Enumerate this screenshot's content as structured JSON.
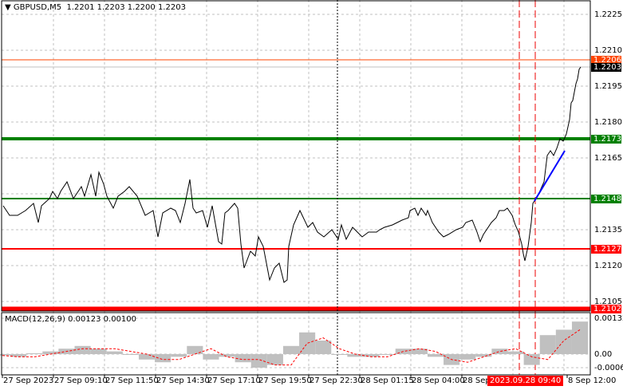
{
  "header": {
    "symbol": "GBPUSD,M5",
    "ohlc": "1.2201 1.2203 1.2200 1.2203",
    "menu_icon": "triangle-down-icon"
  },
  "price_axis": {
    "ticks": [
      "1.2225",
      "1.2210",
      "1.2195",
      "1.2180",
      "1.2165",
      "1.2135",
      "1.2120",
      "1.2105"
    ]
  },
  "levels": [
    {
      "price": 1.2206,
      "label": "1.2206",
      "color": "#ff4500",
      "kind": "ask"
    },
    {
      "price": 1.2203,
      "label": "1.2203",
      "color": "#000000",
      "kind": "bid"
    },
    {
      "price": 1.2173,
      "label": "1.2173",
      "color": "#008000",
      "kind": "resistance"
    },
    {
      "price": 1.2148,
      "label": "1.2148",
      "color": "#008000",
      "kind": "resistance"
    },
    {
      "price": 1.2127,
      "label": "1.2127",
      "color": "#ff0000",
      "kind": "support"
    },
    {
      "price": 1.2102,
      "label": "1.2102",
      "color": "#ff0000",
      "kind": "support"
    }
  ],
  "time_axis": {
    "ticks": [
      "27 Sep 2023",
      "27 Sep 09:10",
      "27 Sep 11:50",
      "27 Sep 14:30",
      "27 Sep 17:10",
      "27 Sep 19:50",
      "27 Sep 22:30",
      "28 Sep 01:15",
      "28 Sep 04:00",
      "28 Sep",
      "8 Sep 12:00"
    ],
    "cursor_time": "2023.09.28 09:40"
  },
  "macd": {
    "label": "MACD(12,26,9) 0.00123 0.00100",
    "ticks": [
      "0.00132",
      "0.00",
      "-0.00063"
    ]
  },
  "chart_data": {
    "type": "line",
    "price_range": [
      1.2096,
      1.2231
    ],
    "price_series": [
      [
        1,
        1.2145
      ],
      [
        5,
        1.2141
      ],
      [
        10,
        1.2141
      ],
      [
        15,
        1.2143
      ],
      [
        20,
        1.2146
      ],
      [
        23,
        1.2138
      ],
      [
        25,
        1.2145
      ],
      [
        30,
        1.2148
      ],
      [
        32,
        1.2151
      ],
      [
        35,
        1.2148
      ],
      [
        37,
        1.2151
      ],
      [
        41,
        1.2155
      ],
      [
        45,
        1.2148
      ],
      [
        50,
        1.2153
      ],
      [
        52,
        1.2149
      ],
      [
        56,
        1.2158
      ],
      [
        59,
        1.2149
      ],
      [
        61,
        1.2159
      ],
      [
        64,
        1.2154
      ],
      [
        66,
        1.2149
      ],
      [
        70,
        1.2144
      ],
      [
        73,
        1.2149
      ],
      [
        77,
        1.2151
      ],
      [
        80,
        1.2153
      ],
      [
        85,
        1.2149
      ],
      [
        90,
        1.2141
      ],
      [
        95,
        1.2143
      ],
      [
        98,
        1.2132
      ],
      [
        101,
        1.2142
      ],
      [
        106,
        1.2144
      ],
      [
        109,
        1.2143
      ],
      [
        112,
        1.2138
      ],
      [
        115,
        1.2146
      ],
      [
        118,
        1.2156
      ],
      [
        120,
        1.2144
      ],
      [
        122,
        1.2142
      ],
      [
        126,
        1.2143
      ],
      [
        129,
        1.2136
      ],
      [
        132,
        1.2145
      ],
      [
        136,
        1.213
      ],
      [
        138,
        1.2129
      ],
      [
        140,
        1.2142
      ],
      [
        142,
        1.2143
      ],
      [
        146,
        1.2146
      ],
      [
        148,
        1.2144
      ],
      [
        150,
        1.2129
      ],
      [
        152,
        1.2119
      ],
      [
        156,
        1.2126
      ],
      [
        159,
        1.2124
      ],
      [
        161,
        1.2132
      ],
      [
        164,
        1.2128
      ],
      [
        166,
        1.2121
      ],
      [
        168,
        1.2114
      ],
      [
        171,
        1.2119
      ],
      [
        174,
        1.2121
      ],
      [
        177,
        1.2113
      ],
      [
        179,
        1.2114
      ],
      [
        180,
        1.2128
      ],
      [
        183,
        1.2137
      ],
      [
        187,
        1.2143
      ],
      [
        192,
        1.2136
      ],
      [
        195,
        1.2138
      ],
      [
        198,
        1.2134
      ],
      [
        202,
        1.2132
      ],
      [
        207,
        1.2135
      ],
      [
        210,
        1.2132
      ],
      [
        211,
        1.2131
      ],
      [
        213,
        1.2137
      ],
      [
        216,
        1.2131
      ],
      [
        220,
        1.2136
      ],
      [
        223,
        1.2134
      ],
      [
        226,
        1.2132
      ],
      [
        230,
        1.2134
      ],
      [
        235,
        1.2134
      ],
      [
        237,
        1.2135
      ],
      [
        240,
        1.2136
      ],
      [
        245,
        1.2137
      ],
      [
        248,
        1.2138
      ],
      [
        251,
        1.2139
      ],
      [
        255,
        1.214
      ],
      [
        256,
        1.2143
      ],
      [
        259,
        1.2144
      ],
      [
        261,
        1.2141
      ],
      [
        263,
        1.2144
      ],
      [
        266,
        1.2141
      ],
      [
        267,
        1.2143
      ],
      [
        270,
        1.2138
      ],
      [
        274,
        1.2134
      ],
      [
        277,
        1.2132
      ],
      [
        280,
        1.2133
      ],
      [
        285,
        1.2135
      ],
      [
        289,
        1.2136
      ],
      [
        291,
        1.2138
      ],
      [
        295,
        1.2139
      ],
      [
        298,
        1.2134
      ],
      [
        300,
        1.213
      ],
      [
        302,
        1.2133
      ],
      [
        307,
        1.2138
      ],
      [
        310,
        1.214
      ],
      [
        312,
        1.2143
      ],
      [
        315,
        1.2143
      ],
      [
        317,
        1.2144
      ],
      [
        320,
        1.2141
      ],
      [
        322,
        1.2137
      ],
      [
        324,
        1.2134
      ],
      [
        326,
        1.2129
      ],
      [
        327,
        1.2125
      ],
      [
        328,
        1.2122
      ],
      [
        330,
        1.2128
      ],
      [
        332,
        1.2138
      ],
      [
        333,
        1.2146
      ],
      [
        336,
        1.2149
      ],
      [
        340,
        1.2155
      ],
      [
        342,
        1.2166
      ],
      [
        344,
        1.2168
      ],
      [
        346,
        1.2166
      ],
      [
        348,
        1.2169
      ],
      [
        350,
        1.2173
      ],
      [
        352,
        1.2172
      ],
      [
        354,
        1.2175
      ],
      [
        356,
        1.2181
      ],
      [
        357,
        1.2188
      ],
      [
        358,
        1.2189
      ],
      [
        360,
        1.2196
      ],
      [
        361,
        1.2198
      ],
      [
        362,
        1.2202
      ],
      [
        363,
        1.2203
      ]
    ],
    "trend_line": [
      [
        334,
        1.2147
      ],
      [
        353,
        1.2168
      ]
    ],
    "macd_histogram": [
      -5e-05,
      -0.0001,
      3e-05,
      0.0001,
      0.0002,
      0.0003,
      0.0002,
      0.0001,
      0.0,
      -0.0002,
      -0.0003,
      -0.0001,
      0.0003,
      -0.0002,
      -0.0001,
      -0.0003,
      -0.0005,
      -0.0004,
      0.0003,
      0.0008,
      0.0005,
      0.0,
      -0.0001,
      -0.0001,
      0.0,
      0.0002,
      0.0002,
      -0.0001,
      -0.0004,
      -0.0002,
      -0.0001,
      0.0002,
      0.0001,
      -0.0004,
      0.0007,
      0.0009,
      0.0012
    ],
    "macd_signal": [
      -5e-05,
      -0.0001,
      -0.0001,
      0.0,
      0.0001,
      0.0002,
      0.0002,
      0.0002,
      0.0001,
      0.0,
      -0.0002,
      -0.0002,
      0.0,
      0.0002,
      -0.0001,
      -0.0002,
      -0.0002,
      -0.0004,
      -0.0004,
      0.0004,
      0.0006,
      0.0002,
      0.0,
      -0.0001,
      -0.0001,
      0.0001,
      0.0002,
      0.0001,
      -0.0002,
      -0.0003,
      -0.0001,
      0.0001,
      0.0002,
      -0.0001,
      -0.0002,
      0.0005,
      0.0009
    ],
    "macd_range": [
      -0.00063,
      0.00132
    ],
    "colors": {
      "price": "#000000",
      "trend": "#0000ff",
      "histogram": "#c0c0c0",
      "signal": "#ff0000",
      "grid": "#c0c0c0"
    },
    "grid": true
  }
}
